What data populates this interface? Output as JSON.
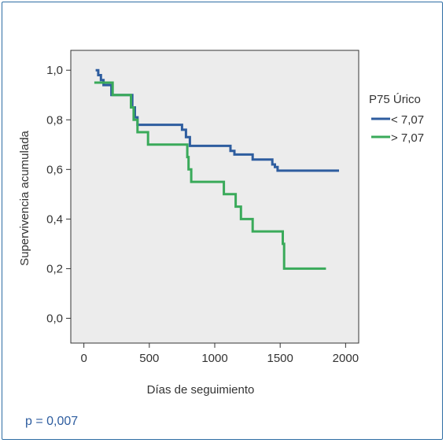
{
  "pvalue_text": "p = 0,007",
  "chart_data": {
    "type": "line",
    "step": true,
    "xlabel": "Días de seguimiento",
    "ylabel": "Supervivencia acumulada",
    "xlim": [
      -100,
      2100
    ],
    "ylim": [
      -0.1,
      1.08
    ],
    "x_ticks": [
      0,
      500,
      1000,
      1500,
      2000
    ],
    "x_tick_labels": [
      "0",
      "500",
      "1000",
      "1500",
      "2000"
    ],
    "y_ticks": [
      0.0,
      0.2,
      0.4,
      0.6,
      0.8,
      1.0
    ],
    "y_tick_labels": [
      "0,0",
      "0,2",
      "0,4",
      "0,6",
      "0,8",
      "1,0"
    ],
    "grid": false,
    "plot_background": "#ececec",
    "legend": {
      "title": "P75 Úrico",
      "placement": "right"
    },
    "series": [
      {
        "name": "< 7,07",
        "color": "#2e5d9f",
        "x": [
          90,
          110,
          130,
          150,
          210,
          370,
          390,
          410,
          750,
          780,
          810,
          1120,
          1150,
          1290,
          1440,
          1460,
          1480,
          1950
        ],
        "y": [
          1.0,
          0.98,
          0.96,
          0.94,
          0.9,
          0.85,
          0.81,
          0.78,
          0.76,
          0.73,
          0.695,
          0.675,
          0.66,
          0.64,
          0.62,
          0.61,
          0.595,
          0.595
        ]
      },
      {
        "name": "> 7,07",
        "color": "#3aaa5a",
        "x": [
          80,
          200,
          220,
          360,
          380,
          410,
          430,
          490,
          790,
          800,
          820,
          1070,
          1160,
          1200,
          1290,
          1520,
          1530,
          1850
        ],
        "y": [
          0.95,
          0.95,
          0.9,
          0.85,
          0.8,
          0.75,
          0.75,
          0.7,
          0.65,
          0.6,
          0.55,
          0.5,
          0.45,
          0.4,
          0.35,
          0.3,
          0.2,
          0.2
        ]
      }
    ]
  }
}
